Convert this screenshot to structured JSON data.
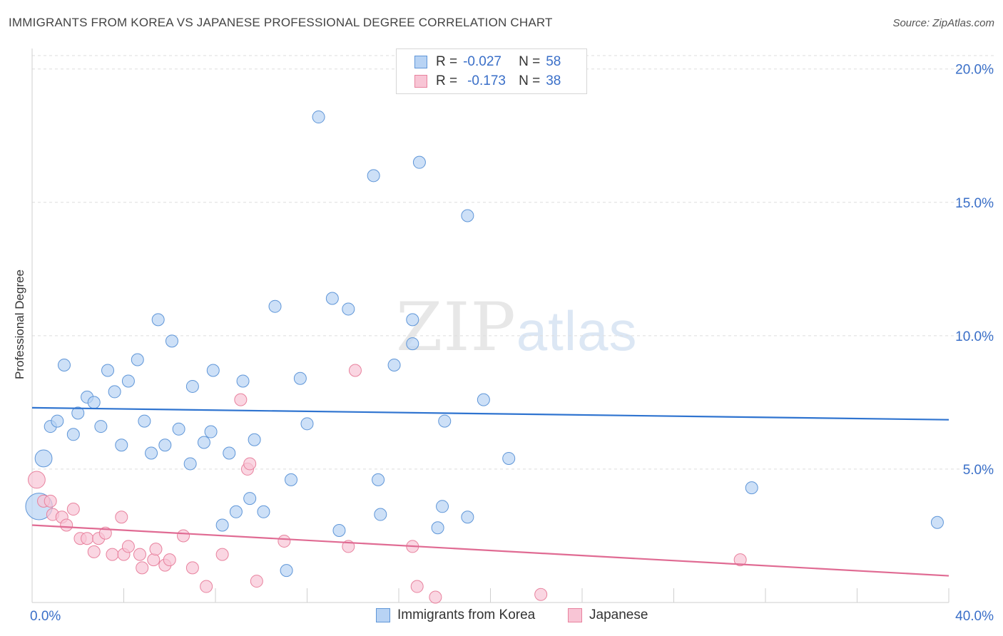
{
  "title": "IMMIGRANTS FROM KOREA VS JAPANESE PROFESSIONAL DEGREE CORRELATION CHART",
  "source": "Source: ZipAtlas.com",
  "watermark": {
    "part1": "ZIP",
    "part2": "atlas"
  },
  "legend": {
    "r_label": "R =",
    "n_label": "N =",
    "series": [
      {
        "name": "Immigrants from Korea",
        "r": "-0.027",
        "n": "58",
        "fill": "#b8d3f4",
        "stroke": "#5f96d8"
      },
      {
        "name": "Japanese",
        "r": "-0.173",
        "n": "38",
        "fill": "#f8c5d5",
        "stroke": "#e8829e"
      }
    ]
  },
  "colors": {
    "blue_line": "#2f74d0",
    "pink_line": "#e06b93",
    "tick_text": "#3a6fc8",
    "grid": "#dddddd"
  },
  "chart_data": {
    "type": "scatter",
    "xlabel": "",
    "ylabel": "Professional Degree",
    "xlim": [
      0,
      40
    ],
    "ylim": [
      0,
      20.5
    ],
    "x_tick_labels": [
      {
        "value": 0,
        "label": "0.0%"
      },
      {
        "value": 40,
        "label": "40.0%"
      }
    ],
    "y_tick_labels": [
      {
        "value": 20,
        "label": "20.0%"
      },
      {
        "value": 15,
        "label": "15.0%"
      },
      {
        "value": 10,
        "label": "10.0%"
      },
      {
        "value": 5,
        "label": "5.0%"
      }
    ],
    "series": [
      {
        "name": "Immigrants from Korea",
        "trend": [
          [
            0,
            7.3
          ],
          [
            40,
            6.85
          ]
        ],
        "points": [
          [
            0.3,
            3.6,
            2.2
          ],
          [
            0.5,
            5.4,
            1.4
          ],
          [
            0.8,
            6.6,
            1
          ],
          [
            1.1,
            6.8,
            1
          ],
          [
            1.4,
            8.9,
            1
          ],
          [
            1.8,
            6.3,
            1
          ],
          [
            2.0,
            7.1,
            1
          ],
          [
            2.4,
            7.7,
            1
          ],
          [
            2.7,
            7.5,
            1
          ],
          [
            3.0,
            6.6,
            1
          ],
          [
            3.3,
            8.7,
            1
          ],
          [
            3.6,
            7.9,
            1
          ],
          [
            3.9,
            5.9,
            1
          ],
          [
            4.2,
            8.3,
            1
          ],
          [
            4.6,
            9.1,
            1
          ],
          [
            4.9,
            6.8,
            1
          ],
          [
            5.2,
            5.6,
            1
          ],
          [
            5.5,
            10.6,
            1
          ],
          [
            5.8,
            5.9,
            1
          ],
          [
            6.1,
            9.8,
            1
          ],
          [
            6.4,
            6.5,
            1
          ],
          [
            6.9,
            5.2,
            1
          ],
          [
            7.0,
            8.1,
            1
          ],
          [
            7.5,
            6.0,
            1
          ],
          [
            7.8,
            6.4,
            1
          ],
          [
            7.9,
            8.7,
            1
          ],
          [
            8.3,
            2.9,
            1
          ],
          [
            8.6,
            5.6,
            1
          ],
          [
            8.9,
            3.4,
            1
          ],
          [
            9.2,
            8.3,
            1
          ],
          [
            9.5,
            3.9,
            1
          ],
          [
            9.7,
            6.1,
            1
          ],
          [
            10.1,
            3.4,
            1
          ],
          [
            10.6,
            11.1,
            1
          ],
          [
            11.1,
            1.2,
            1
          ],
          [
            11.3,
            4.6,
            1
          ],
          [
            11.7,
            8.4,
            1
          ],
          [
            12.0,
            6.7,
            1
          ],
          [
            12.5,
            18.2,
            1
          ],
          [
            13.1,
            11.4,
            1
          ],
          [
            13.4,
            2.7,
            1
          ],
          [
            13.8,
            11.0,
            1
          ],
          [
            14.9,
            16.0,
            1
          ],
          [
            15.1,
            4.6,
            1
          ],
          [
            15.2,
            3.3,
            1
          ],
          [
            15.8,
            8.9,
            1
          ],
          [
            16.6,
            10.6,
            1
          ],
          [
            16.6,
            9.7,
            1
          ],
          [
            16.9,
            16.5,
            1
          ],
          [
            17.7,
            2.8,
            1
          ],
          [
            17.9,
            3.6,
            1
          ],
          [
            18.0,
            6.8,
            1
          ],
          [
            19.0,
            14.5,
            1
          ],
          [
            19.0,
            3.2,
            1
          ],
          [
            19.7,
            7.6,
            1
          ],
          [
            20.8,
            5.4,
            1
          ],
          [
            31.4,
            4.3,
            1
          ],
          [
            39.5,
            3.0,
            1
          ]
        ]
      },
      {
        "name": "Japanese",
        "trend": [
          [
            0,
            2.9
          ],
          [
            40,
            1.0
          ]
        ],
        "points": [
          [
            0.2,
            4.6,
            1.4
          ],
          [
            0.5,
            3.8,
            1
          ],
          [
            0.8,
            3.8,
            1
          ],
          [
            0.9,
            3.3,
            1
          ],
          [
            1.3,
            3.2,
            1
          ],
          [
            1.5,
            2.9,
            1
          ],
          [
            1.8,
            3.5,
            1
          ],
          [
            2.1,
            2.4,
            1
          ],
          [
            2.4,
            2.4,
            1
          ],
          [
            2.7,
            1.9,
            1
          ],
          [
            2.9,
            2.4,
            1
          ],
          [
            3.2,
            2.6,
            1
          ],
          [
            3.5,
            1.8,
            1
          ],
          [
            3.9,
            3.2,
            1
          ],
          [
            4.0,
            1.8,
            1
          ],
          [
            4.2,
            2.1,
            1
          ],
          [
            4.7,
            1.8,
            1
          ],
          [
            4.8,
            1.3,
            1
          ],
          [
            5.3,
            1.6,
            1
          ],
          [
            5.4,
            2.0,
            1
          ],
          [
            5.8,
            1.4,
            1
          ],
          [
            6.0,
            1.6,
            1
          ],
          [
            6.6,
            2.5,
            1
          ],
          [
            7.0,
            1.3,
            1
          ],
          [
            7.6,
            0.6,
            1
          ],
          [
            8.3,
            1.8,
            1
          ],
          [
            9.1,
            7.6,
            1
          ],
          [
            9.4,
            5.0,
            1
          ],
          [
            9.5,
            5.2,
            1
          ],
          [
            9.8,
            0.8,
            1
          ],
          [
            11.0,
            2.3,
            1
          ],
          [
            13.8,
            2.1,
            1
          ],
          [
            14.1,
            8.7,
            1
          ],
          [
            16.6,
            2.1,
            1
          ],
          [
            16.8,
            0.6,
            1
          ],
          [
            17.6,
            0.2,
            1
          ],
          [
            22.2,
            0.3,
            1
          ],
          [
            30.9,
            1.6,
            1
          ]
        ]
      }
    ]
  }
}
